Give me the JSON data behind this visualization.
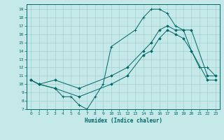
{
  "xlabel": "Humidex (Indice chaleur)",
  "background_color": "#c5e8e8",
  "grid_color": "#a8d0d0",
  "line_color": "#006868",
  "xlim": [
    -0.5,
    23.5
  ],
  "ylim": [
    7,
    19.6
  ],
  "yticks": [
    7,
    8,
    9,
    10,
    11,
    12,
    13,
    14,
    15,
    16,
    17,
    18,
    19
  ],
  "xticks": [
    0,
    1,
    2,
    3,
    4,
    5,
    6,
    7,
    8,
    9,
    10,
    11,
    12,
    13,
    14,
    15,
    16,
    17,
    18,
    19,
    20,
    21,
    22,
    23
  ],
  "line1_x": [
    0,
    1,
    3,
    4,
    5,
    6,
    7,
    8,
    9,
    10,
    13,
    14,
    15,
    16,
    17,
    18,
    19,
    20,
    21,
    22,
    23
  ],
  "line1_y": [
    10.5,
    10.0,
    9.5,
    8.5,
    8.5,
    7.5,
    7.0,
    8.5,
    10.0,
    14.5,
    16.5,
    18.0,
    19.0,
    19.0,
    18.5,
    17.0,
    16.5,
    14.0,
    12.0,
    12.0,
    11.0
  ],
  "line2_x": [
    0,
    1,
    3,
    6,
    10,
    12,
    14,
    15,
    16,
    17,
    18,
    19,
    20,
    22,
    23
  ],
  "line2_y": [
    10.5,
    10.0,
    10.5,
    9.5,
    11.0,
    12.0,
    14.0,
    15.0,
    16.5,
    17.0,
    16.5,
    16.5,
    16.5,
    11.0,
    11.0
  ],
  "line3_x": [
    0,
    1,
    3,
    6,
    10,
    12,
    14,
    15,
    16,
    17,
    18,
    19,
    20,
    22,
    23
  ],
  "line3_y": [
    10.5,
    10.0,
    9.5,
    8.5,
    10.0,
    11.0,
    13.5,
    14.0,
    15.5,
    16.5,
    16.0,
    15.5,
    14.0,
    10.5,
    10.5
  ]
}
